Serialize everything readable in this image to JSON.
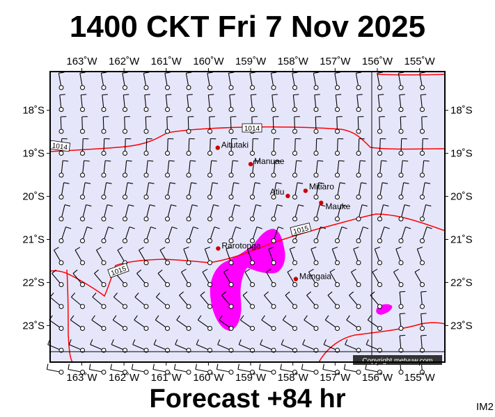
{
  "title": "1400 CKT Fri 7 Nov 2025",
  "subtitle": "Forecast +84 hr",
  "model_label": "IM2",
  "copyright": "Copyright metvuw.com",
  "colors": {
    "map_background": "#e6e6fa",
    "isobar": "#ff0000",
    "rain": "#ff00ff",
    "island": "#cc0000",
    "frame": "#000000"
  },
  "map": {
    "lon_range": [
      -163.75,
      -154.4
    ],
    "lat_range": [
      -23.85,
      -17.1
    ],
    "lon_ticks": [
      {
        "lon": -163,
        "label": "163˚W"
      },
      {
        "lon": -162,
        "label": "162˚W"
      },
      {
        "lon": -161,
        "label": "161˚W"
      },
      {
        "lon": -160,
        "label": "160˚W"
      },
      {
        "lon": -159,
        "label": "159˚W"
      },
      {
        "lon": -158,
        "label": "158˚W"
      },
      {
        "lon": -157,
        "label": "157˚W"
      },
      {
        "lon": -156,
        "label": "156˚W"
      },
      {
        "lon": -155,
        "label": "155˚W"
      }
    ],
    "lat_ticks": [
      {
        "lat": -18,
        "label": "18˚S"
      },
      {
        "lat": -19,
        "label": "19˚S"
      },
      {
        "lat": -20,
        "label": "20˚S"
      },
      {
        "lat": -21,
        "label": "21˚S"
      },
      {
        "lat": -22,
        "label": "22˚S"
      },
      {
        "lat": -23,
        "label": "23˚S"
      }
    ],
    "isobar_labels": [
      "1014",
      "1014",
      "1015",
      "1015"
    ],
    "islands": [
      {
        "name": "Aitutaki",
        "lon": -159.78,
        "lat": -18.87
      },
      {
        "name": "Manuae",
        "lon": -159.0,
        "lat": -19.25
      },
      {
        "name": "Atiu",
        "lon": -158.12,
        "lat": -19.99
      },
      {
        "name": "Mitiaro",
        "lon": -157.7,
        "lat": -19.87
      },
      {
        "name": "Mauke",
        "lon": -157.33,
        "lat": -20.15
      },
      {
        "name": "Rarotonga",
        "lon": -159.77,
        "lat": -21.21
      },
      {
        "name": "Mangaia",
        "lon": -157.93,
        "lat": -21.92
      }
    ]
  }
}
